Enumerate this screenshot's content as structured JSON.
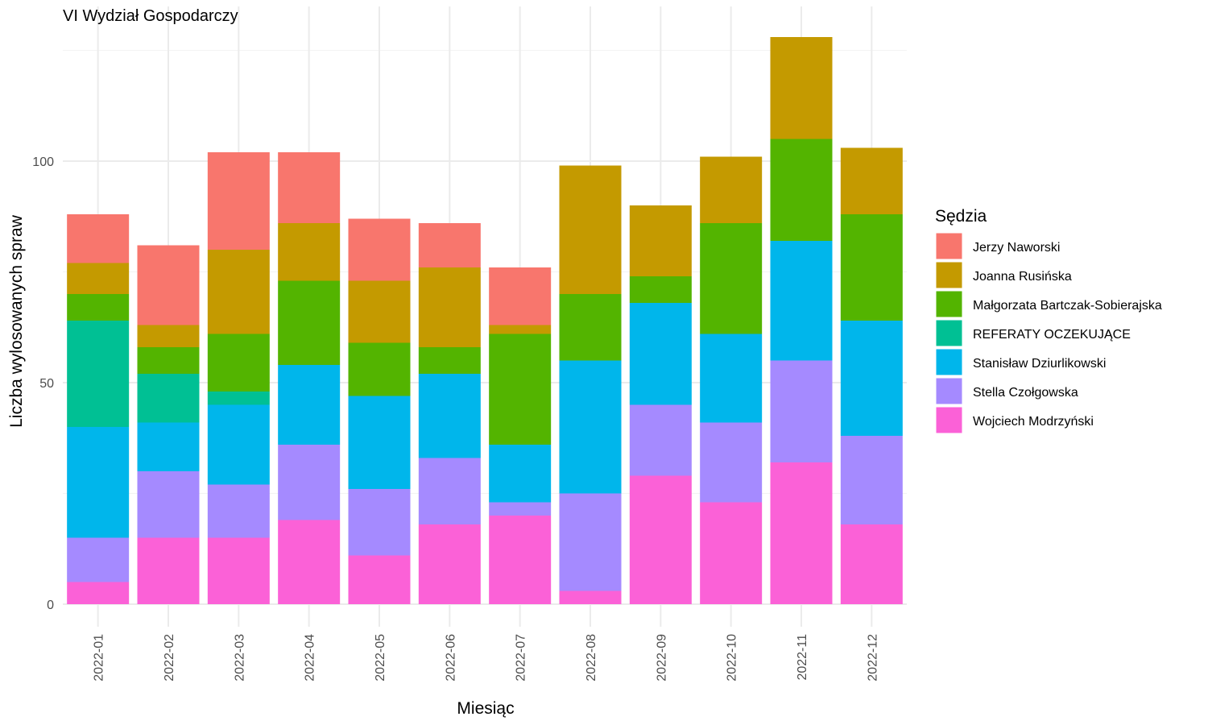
{
  "chart_data": {
    "type": "bar",
    "stacked": true,
    "title": "VI Wydział Gospodarczy",
    "xlabel": "Miesiąc",
    "ylabel": "Liczba wylosowanych spraw",
    "ylim": [
      0,
      130
    ],
    "yticks": [
      0,
      50,
      100
    ],
    "grid": true,
    "legend_position": "right",
    "legend_title": "Sędzia",
    "categories": [
      "2022-01",
      "2022-02",
      "2022-03",
      "2022-04",
      "2022-05",
      "2022-06",
      "2022-07",
      "2022-08",
      "2022-09",
      "2022-10",
      "2022-11",
      "2022-12"
    ],
    "series": [
      {
        "name": "Jerzy Naworski",
        "color": "#F8766D",
        "values": [
          11,
          18,
          22,
          16,
          14,
          10,
          13,
          0,
          0,
          0,
          0,
          0
        ]
      },
      {
        "name": "Joanna Rusińska",
        "color": "#C49A00",
        "values": [
          7,
          5,
          19,
          13,
          14,
          18,
          2,
          29,
          16,
          15,
          23,
          15
        ]
      },
      {
        "name": "Małgorzata Bartczak-Sobierajska",
        "color": "#53B400",
        "values": [
          6,
          6,
          13,
          19,
          12,
          6,
          25,
          15,
          6,
          25,
          23,
          24
        ]
      },
      {
        "name": "REFERATY OCZEKUJĄCE",
        "color": "#00C094",
        "values": [
          24,
          11,
          3,
          0,
          0,
          0,
          0,
          0,
          0,
          0,
          0,
          0
        ]
      },
      {
        "name": "Stanisław Dziurlikowski",
        "color": "#00B6EB",
        "values": [
          25,
          11,
          18,
          18,
          21,
          19,
          13,
          30,
          23,
          20,
          27,
          26
        ]
      },
      {
        "name": "Stella Czołgowska",
        "color": "#A58AFF",
        "values": [
          10,
          15,
          12,
          17,
          15,
          15,
          3,
          22,
          16,
          18,
          23,
          20
        ]
      },
      {
        "name": "Wojciech Modrzyński",
        "color": "#FB61D7",
        "values": [
          5,
          15,
          15,
          19,
          11,
          18,
          20,
          3,
          29,
          23,
          32,
          18
        ]
      }
    ]
  }
}
